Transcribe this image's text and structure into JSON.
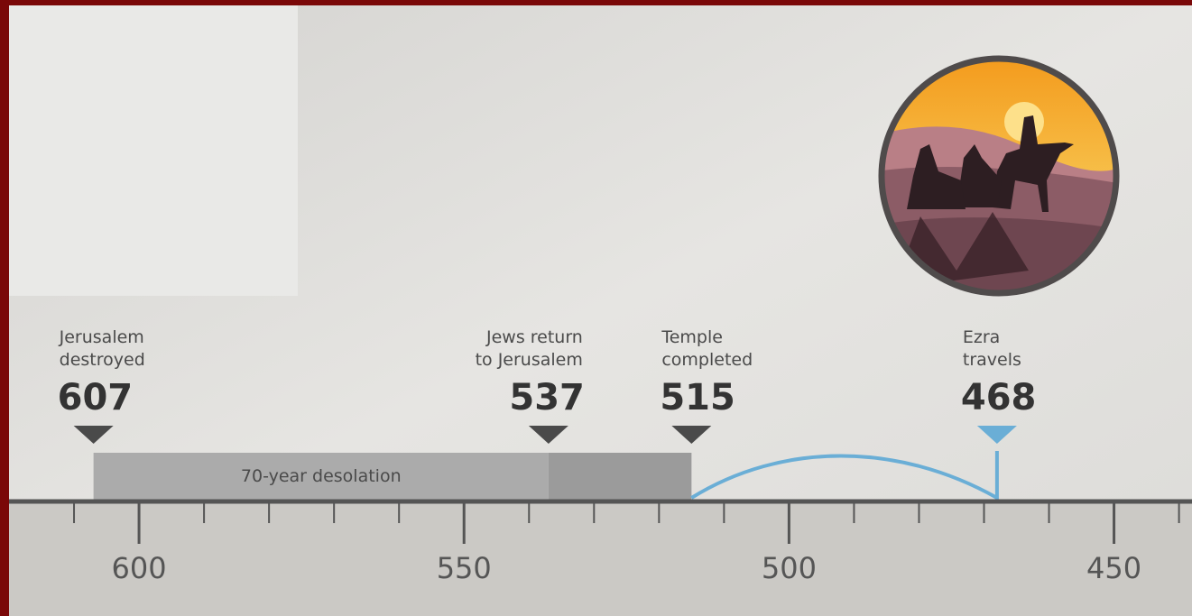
{
  "timeline": {
    "events": [
      {
        "label_lines": [
          "Jerusalem",
          "destroyed"
        ],
        "year": 607
      },
      {
        "label_lines": [
          "Jews return",
          "to Jerusalem"
        ],
        "year": 537
      },
      {
        "label_lines": [
          "Temple",
          "completed"
        ],
        "year": 515
      },
      {
        "label_lines": [
          "Ezra",
          "travels"
        ],
        "year": 468
      }
    ],
    "periods": [
      {
        "label": "70-year desolation",
        "start": 607,
        "end": 537
      },
      {
        "start": 537,
        "end": 515
      }
    ],
    "journey": {
      "start": 515,
      "end": 468
    },
    "axis": {
      "xlim": [
        620,
        438
      ],
      "ticks": [
        600,
        550,
        500,
        450
      ],
      "minor_ticks": [
        610,
        590,
        580,
        570,
        560,
        540,
        530,
        520,
        510,
        490,
        480,
        470,
        460,
        440
      ]
    }
  }
}
